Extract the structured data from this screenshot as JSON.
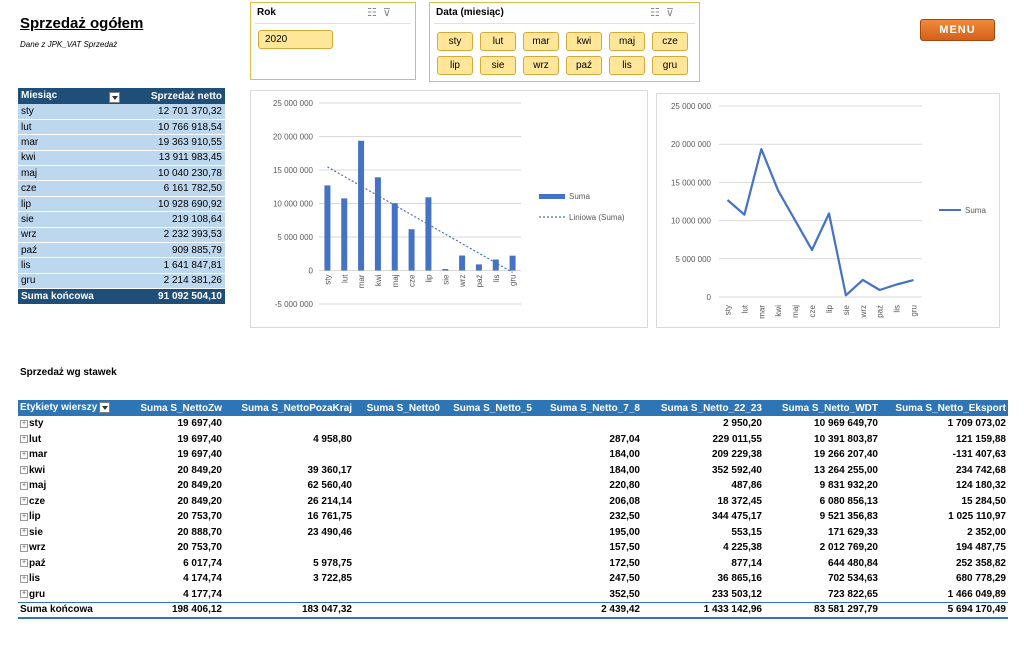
{
  "header": {
    "title": "Sprzedaż ogółem",
    "subtitle": "Dane z JPK_VAT Sprzedaż",
    "menu_label": "MENU"
  },
  "slicer_year": {
    "title": "Rok",
    "items": [
      "2020"
    ]
  },
  "slicer_month": {
    "title": "Data (miesiąc)",
    "items": [
      "sty",
      "lut",
      "mar",
      "kwi",
      "maj",
      "cze",
      "lip",
      "sie",
      "wrz",
      "paź",
      "lis",
      "gru"
    ]
  },
  "monthly_table": {
    "col1": "Miesiąc",
    "col2": "Sprzedaż netto",
    "rows": [
      {
        "m": "sty",
        "v": "12 701 370,32"
      },
      {
        "m": "lut",
        "v": "10 766 918,54"
      },
      {
        "m": "mar",
        "v": "19 363 910,55"
      },
      {
        "m": "kwi",
        "v": "13 911 983,45"
      },
      {
        "m": "maj",
        "v": "10 040 230,78"
      },
      {
        "m": "cze",
        "v": "6 161 782,50"
      },
      {
        "m": "lip",
        "v": "10 928 690,92"
      },
      {
        "m": "sie",
        "v": "219 108,64"
      },
      {
        "m": "wrz",
        "v": "2 232 393,53"
      },
      {
        "m": "paź",
        "v": "909 885,79"
      },
      {
        "m": "lis",
        "v": "1 641 847,81"
      },
      {
        "m": "gru",
        "v": "2 214 381,26"
      }
    ],
    "total_label": "Suma końcowa",
    "total_value": "91 092 504,10"
  },
  "chart_data": [
    {
      "type": "bar",
      "categories": [
        "sty",
        "lut",
        "mar",
        "kwi",
        "maj",
        "cze",
        "lip",
        "sie",
        "wrz",
        "paź",
        "lis",
        "gru"
      ],
      "series": [
        {
          "name": "Suma",
          "values": [
            12701370.32,
            10766918.54,
            19363910.55,
            13911983.45,
            10040230.78,
            6161782.5,
            10928690.92,
            219108.64,
            2232393.53,
            909885.79,
            1641847.81,
            2214381.26
          ]
        }
      ],
      "trendline": {
        "name": "Liniowa (Suma)",
        "type": "linear"
      },
      "ylim": [
        -5000000,
        25000000
      ],
      "yticks": [
        -5000000,
        0,
        5000000,
        10000000,
        15000000,
        20000000,
        25000000
      ],
      "ytick_labels": [
        "-5 000 000",
        "0",
        "5 000 000",
        "10 000 000",
        "15 000 000",
        "20 000 000",
        "25 000 000"
      ],
      "legend": "right",
      "grid": true,
      "color": "#4472c4"
    },
    {
      "type": "line",
      "categories": [
        "sty",
        "lut",
        "mar",
        "kwi",
        "maj",
        "cze",
        "lip",
        "sie",
        "wrz",
        "paź",
        "lis",
        "gru"
      ],
      "series": [
        {
          "name": "Suma",
          "values": [
            12701370.32,
            10766918.54,
            19363910.55,
            13911983.45,
            10040230.78,
            6161782.5,
            10928690.92,
            219108.64,
            2232393.53,
            909885.79,
            1641847.81,
            2214381.26
          ]
        }
      ],
      "ylim": [
        0,
        25000000
      ],
      "yticks": [
        0,
        5000000,
        10000000,
        15000000,
        20000000,
        25000000
      ],
      "ytick_labels": [
        "0",
        "5 000 000",
        "10 000 000",
        "15 000 000",
        "20 000 000",
        "25 000 000"
      ],
      "legend": "right",
      "grid": true,
      "color": "#4472c4"
    }
  ],
  "rates": {
    "section_title": "Sprzedaż wg stawek",
    "headers": [
      "Etykiety wierszy",
      "Suma S_NettoZw",
      "Suma S_NettoPozaKraj",
      "Suma S_Netto0",
      "Suma S_Netto_5",
      "Suma S_Netto_7_8",
      "Suma S_Netto_22_23",
      "Suma S_Netto_WDT",
      "Suma S_Netto_Eksport"
    ],
    "rows": [
      [
        "sty",
        "19 697,40",
        "",
        "",
        "",
        "",
        "2 950,20",
        "10 969 649,70",
        "1 709 073,02"
      ],
      [
        "lut",
        "19 697,40",
        "4 958,80",
        "",
        "",
        "287,04",
        "229 011,55",
        "10 391 803,87",
        "121 159,88"
      ],
      [
        "mar",
        "19 697,40",
        "",
        "",
        "",
        "184,00",
        "209 229,38",
        "19 266 207,40",
        "-131 407,63"
      ],
      [
        "kwi",
        "20 849,20",
        "39 360,17",
        "",
        "",
        "184,00",
        "352 592,40",
        "13 264 255,00",
        "234 742,68"
      ],
      [
        "maj",
        "20 849,20",
        "62 560,40",
        "",
        "",
        "220,80",
        "487,86",
        "9 831 932,20",
        "124 180,32"
      ],
      [
        "cze",
        "20 849,20",
        "26 214,14",
        "",
        "",
        "206,08",
        "18 372,45",
        "6 080 856,13",
        "15 284,50"
      ],
      [
        "lip",
        "20 753,70",
        "16 761,75",
        "",
        "",
        "232,50",
        "344 475,17",
        "9 521 356,83",
        "1 025 110,97"
      ],
      [
        "sie",
        "20 888,70",
        "23 490,46",
        "",
        "",
        "195,00",
        "553,15",
        "171 629,33",
        "2 352,00"
      ],
      [
        "wrz",
        "20 753,70",
        "",
        "",
        "",
        "157,50",
        "4 225,38",
        "2 012 769,20",
        "194 487,75"
      ],
      [
        "paź",
        "6 017,74",
        "5 978,75",
        "",
        "",
        "172,50",
        "877,14",
        "644 480,84",
        "252 358,82"
      ],
      [
        "lis",
        "4 174,74",
        "3 722,85",
        "",
        "",
        "247,50",
        "36 865,16",
        "702 534,63",
        "680 778,29"
      ],
      [
        "gru",
        "4 177,74",
        "",
        "",
        "",
        "352,50",
        "233 503,12",
        "723 822,65",
        "1 466 049,89"
      ]
    ],
    "total": [
      "Suma końcowa",
      "198 406,12",
      "183 047,32",
      "",
      "",
      "2 439,42",
      "1 433 142,96",
      "83 581 297,79",
      "5 694 170,49"
    ]
  }
}
